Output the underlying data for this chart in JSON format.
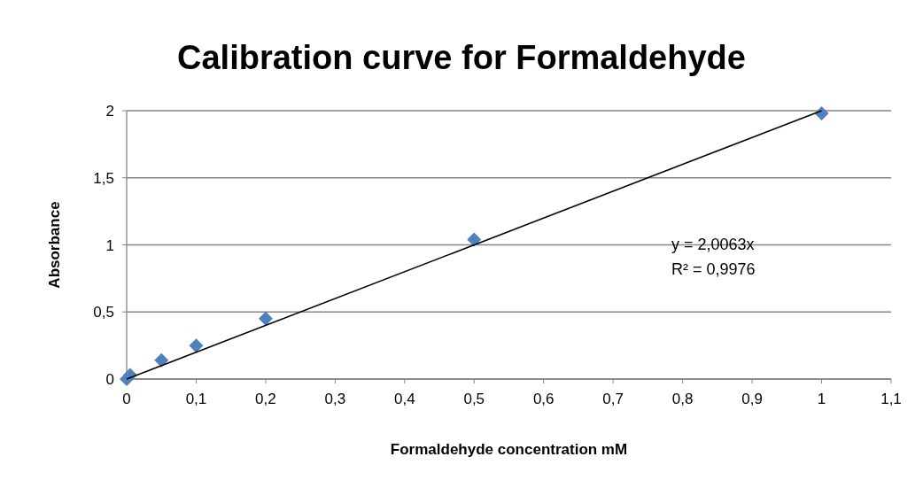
{
  "chart_data": {
    "type": "scatter",
    "title": "Calibration curve for Formaldehyde",
    "xlabel": "Formaldehyde concentration mM",
    "ylabel": "Absorbance",
    "x": [
      0,
      0.005,
      0.05,
      0.1,
      0.2,
      0.5,
      1
    ],
    "series": [
      {
        "color": "#4f81bd",
        "values": [
          0,
          0.03,
          0.14,
          0.25,
          0.45,
          1.04,
          1.98
        ],
        "marker": "diamond"
      },
      {
        "type": "line",
        "color": "#000000",
        "x": [
          0,
          1
        ],
        "values": [
          0,
          2
        ],
        "marker": "none",
        "line_style": "solid"
      }
    ],
    "annotations": [
      "y = 2,0063x",
      "R² = 0,9976"
    ],
    "xlim": [
      0,
      1.1
    ],
    "xticks": [
      0,
      {
        "value": 0.1,
        "label": "0,1"
      },
      {
        "value": 0.2,
        "label": "0,2"
      },
      {
        "value": 0.3,
        "label": "0,3"
      },
      {
        "value": 0.4,
        "label": "0,4"
      },
      {
        "value": 0.5,
        "label": "0,5"
      },
      {
        "value": 0.6,
        "label": "0,6"
      },
      {
        "value": 0.7,
        "label": "0,7"
      },
      {
        "value": 0.8,
        "label": "0,8"
      },
      {
        "value": 0.9,
        "label": "0,9"
      },
      1,
      {
        "value": 1.1,
        "label": "1,1"
      }
    ],
    "ylim": [
      0,
      2
    ],
    "yticks": [
      0,
      {
        "value": 0.5,
        "label": "0,5"
      },
      1,
      {
        "value": 1.5,
        "label": "1,5"
      },
      2
    ],
    "grid": "y"
  }
}
